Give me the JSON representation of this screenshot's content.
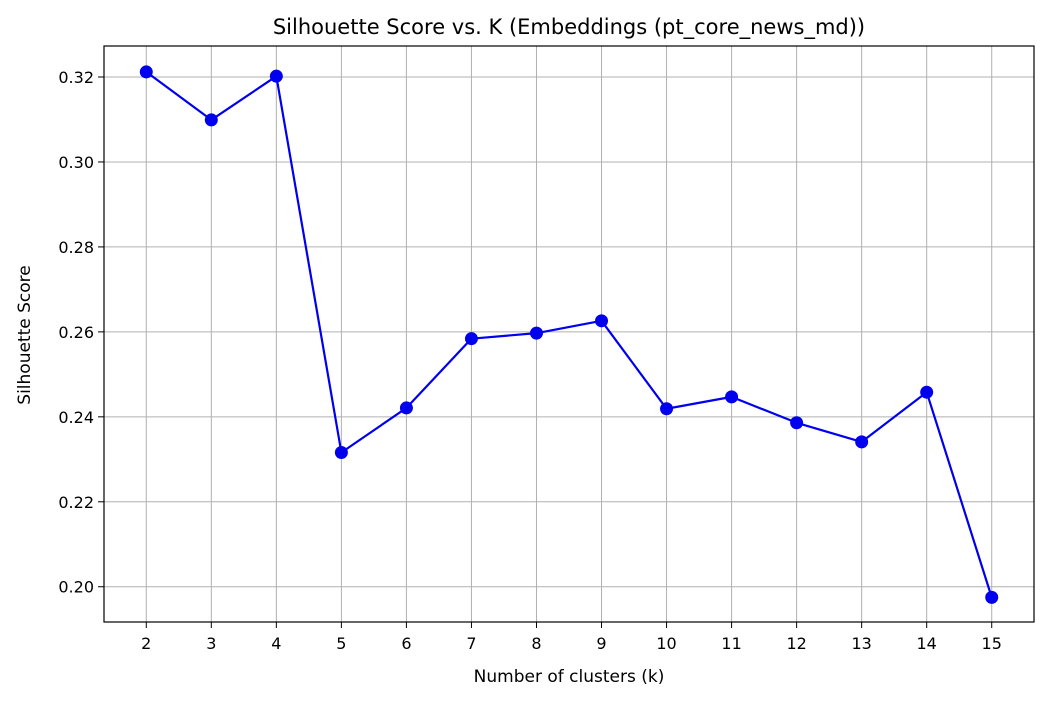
{
  "chart_data": {
    "type": "line",
    "title": "Silhouette Score vs. K (Embeddings (pt_core_news_md))",
    "xlabel": "Number of clusters (k)",
    "ylabel": "Silhouette Score",
    "x": [
      2,
      3,
      4,
      5,
      6,
      7,
      8,
      9,
      10,
      11,
      12,
      13,
      14,
      15
    ],
    "series": [
      {
        "color": "#0000ee",
        "marker": "circle",
        "values": [
          0.3212,
          0.3099,
          0.3202,
          0.2316,
          0.2421,
          0.2584,
          0.2597,
          0.2626,
          0.2419,
          0.2447,
          0.2386,
          0.2341,
          0.2458,
          0.1975
        ]
      }
    ],
    "xticks": [
      2,
      3,
      4,
      5,
      6,
      7,
      8,
      9,
      10,
      11,
      12,
      13,
      14,
      15
    ],
    "yticks": [
      0.2,
      0.22,
      0.24,
      0.26,
      0.28,
      0.3,
      0.32
    ],
    "ytick_labels": [
      "0.20",
      "0.22",
      "0.24",
      "0.26",
      "0.28",
      "0.30",
      "0.32"
    ],
    "xlim": [
      1.35,
      15.65
    ],
    "ylim": [
      0.1917,
      0.3273
    ],
    "grid": true
  }
}
